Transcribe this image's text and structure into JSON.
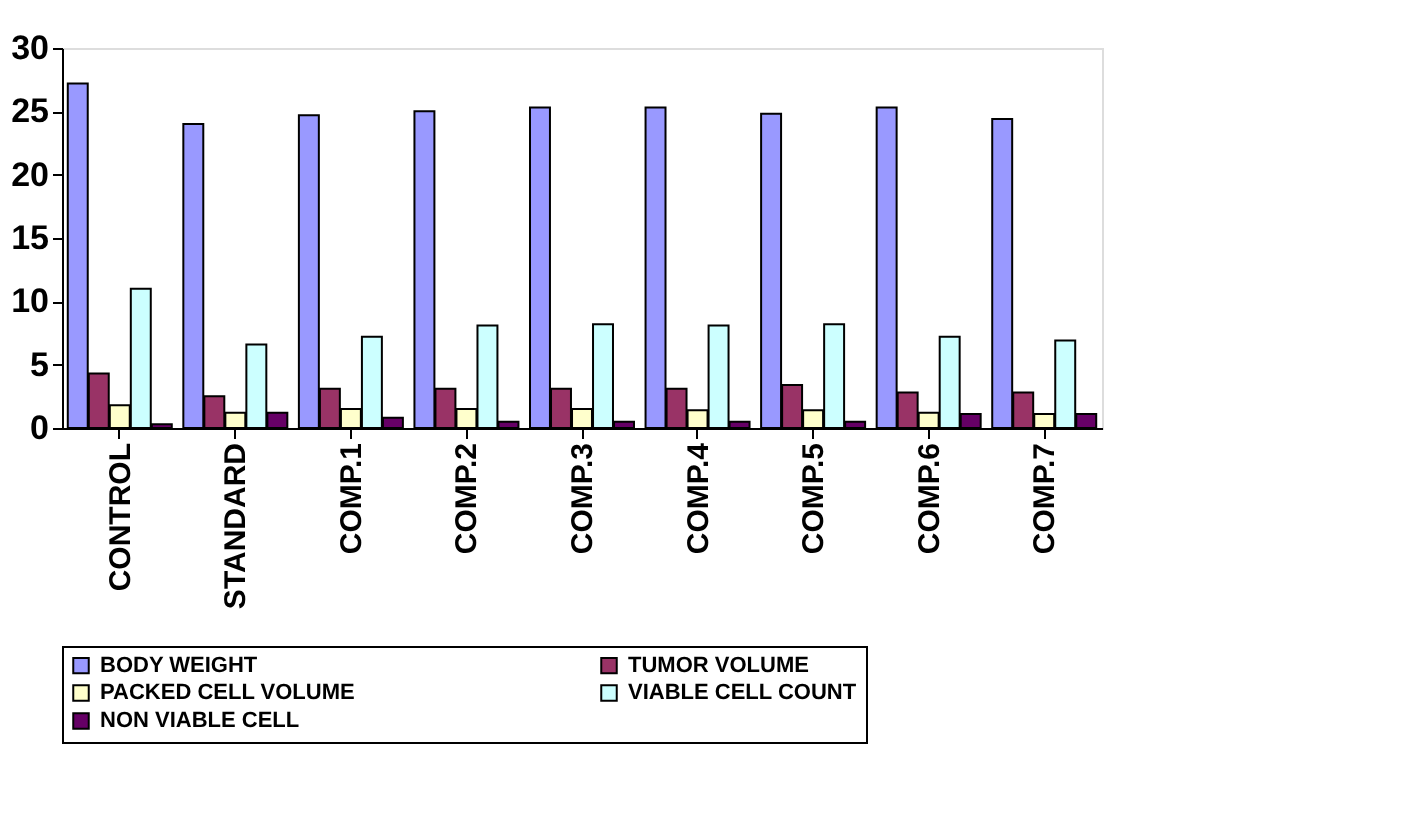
{
  "chart_data": {
    "type": "bar",
    "categories": [
      "CONTROL",
      "STANDARD",
      "COMP.1",
      "COMP.2",
      "COMP.3",
      "COMP.4",
      "COMP.5",
      "COMP.6",
      "COMP.7"
    ],
    "series": [
      {
        "name": "BODY WEIGHT",
        "color": "#9999ff",
        "values": [
          27.2,
          24,
          24.7,
          25,
          25.3,
          25.3,
          24.8,
          25.3,
          24.4
        ]
      },
      {
        "name": "TUMOR VOLUME",
        "color": "#993366",
        "values": [
          4.3,
          2.5,
          3.1,
          3.1,
          3.1,
          3.1,
          3.4,
          2.8,
          2.8
        ]
      },
      {
        "name": "PACKED CELL VOLUME",
        "color": "#ffffcc",
        "values": [
          1.8,
          1.2,
          1.5,
          1.5,
          1.5,
          1.4,
          1.4,
          1.2,
          1.1
        ]
      },
      {
        "name": "VIABLE CELL COUNT",
        "color": "#ccffff",
        "values": [
          11,
          6.6,
          7.2,
          8.1,
          8.2,
          8.1,
          8.2,
          7.2,
          6.9
        ]
      },
      {
        "name": "NON VIABLE CELL",
        "color": "#660066",
        "values": [
          0.3,
          1.2,
          0.8,
          0.5,
          0.5,
          0.5,
          0.5,
          1.1,
          1.1
        ]
      }
    ],
    "ylim": [
      0,
      30
    ],
    "yticks": [
      0,
      5,
      10,
      15,
      20,
      25,
      30
    ],
    "grid": false,
    "legend": "bottom"
  }
}
